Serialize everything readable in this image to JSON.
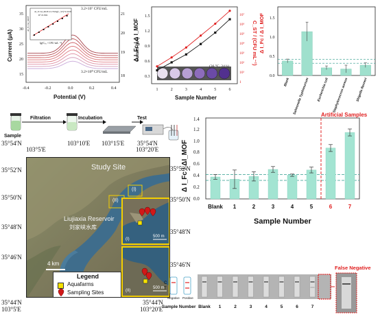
{
  "panel_a": {
    "ylabel": "Current (μA)",
    "xlabel": "Potential (V)",
    "ylabel_right": "Current (μA)",
    "top_label": "3.2×10⁷ CFU/mL",
    "bottom_label": "3.2×10⁰ CFU/mL",
    "inset_xlabel": "lg(Cₛₜ / CFU·mL⁻¹)",
    "inset_ylabel": "ΔI_Fc/ΔI_MOF",
    "inset_eq": "ΔI_Fc/ΔI_MOF=0.1792lg(C_ST)+0.3258",
    "inset_r2": "R²=0.994",
    "x_ticks": [
      "-0.4",
      "-0.2",
      "0.0",
      "0.2",
      "0.4"
    ],
    "y_ticks_left": [
      "15",
      "20",
      "25",
      "30",
      "35"
    ],
    "y_ticks_right": [
      "18",
      "19",
      "20",
      "21"
    ],
    "inset_x_ticks": [
      "0",
      "2",
      "4",
      "6",
      "8"
    ],
    "inset_y_ticks": [
      "0.4",
      "1.0",
      "1.6"
    ]
  },
  "panel_b": {
    "ylabel": "Δ I_Fc / Δ I_MOF",
    "ylabel_right": "C_ST / (CFU mL⁻¹)",
    "xlabel": "Sample Number",
    "condition": "(36 °C, 24 h)",
    "x_ticks": [
      "1",
      "2",
      "3",
      "4",
      "5",
      "6"
    ],
    "y_ticks_left": [
      "0.3",
      "0.6",
      "0.9",
      "1.2",
      "1.5"
    ],
    "y_ticks_right": [
      "1",
      "10¹",
      "10²",
      "10³",
      "10⁴",
      "10⁵",
      "10⁶",
      "10⁷"
    ],
    "colors": {
      "ratio": "#111111",
      "conc": "#e02020"
    }
  },
  "panel_c": {
    "ylabel": "Δ I_Fc / Δ I_MOF",
    "y_ticks": [
      "0.0",
      "0.5",
      "1.0",
      "1.5"
    ],
    "categories": [
      "Blank",
      "Salmonella Typhimurium",
      "Escherichia coli",
      "Staphylococcus aureus",
      "Shigella flexneri"
    ]
  },
  "workflow": {
    "steps": [
      "Sample",
      "Filtration",
      "Incubation",
      "Test"
    ]
  },
  "map": {
    "lat_labels": [
      "35°54'N",
      "35°52'N",
      "35°50'N",
      "35°48'N",
      "35°46'N",
      "35°44'N"
    ],
    "lon_top": [
      "103°5'E",
      "103°10'E",
      "103°15'E",
      "103°20'E"
    ],
    "corner_tl": "35°54'N",
    "corner_tr": "35°54'N",
    "corner_bl_lat": "35°44'N",
    "corner_bl_lon": "103°5'E",
    "corner_br_lat": "35°44'N",
    "corner_br_lon": "103°20'E",
    "study_site": "Study Site",
    "reservoir_en": "Liujiaxia Reservoir",
    "reservoir_cn": "刘家峡水库",
    "scale_main": "4 km",
    "inset_scale": "500 m",
    "inset1_label": "(I)",
    "inset2_label": "(II)",
    "legend_title": "Legend",
    "legend_items": [
      "Aquafarms",
      "Sampling Sites"
    ]
  },
  "panel_d": {
    "ylabel": "Δ I_Fc / ΔI_MOF",
    "xlabel": "Sample Number",
    "annotation": "Artificial Samples",
    "y_ticks": [
      "0.0",
      "0.2",
      "0.4",
      "0.6",
      "0.8",
      "1.0",
      "1.2",
      "1.4"
    ]
  },
  "strips": {
    "labels": [
      "Blank",
      "1",
      "2",
      "3",
      "4",
      "5",
      "6",
      "7"
    ],
    "row_label": "Sample Number",
    "negative": "Negative",
    "positive": "Positive",
    "ct": [
      "C",
      "T"
    ],
    "false_negative": "False Negative"
  },
  "chart_data": [
    {
      "type": "line",
      "x": [
        1,
        2,
        3,
        4,
        5,
        6
      ],
      "series": [
        {
          "values": [
            0.42,
            0.58,
            0.74,
            0.95,
            1.18,
            1.45
          ]
        },
        {
          "values": [
            0.5,
            0.68,
            0.88,
            1.12,
            1.36,
            1.62
          ]
        }
      ],
      "xlabel": "Sample Number",
      "ylabel": "Δ I_Fc / Δ I_MOF",
      "ylim": [
        0.15,
        1.7
      ]
    },
    {
      "type": "bar",
      "categories": [
        "Blank",
        "Salmonella Typhimurium",
        "Escherichia coli",
        "Staphylococcus aureus",
        "Shigella flexneri"
      ],
      "values": [
        0.38,
        1.15,
        0.2,
        0.17,
        0.27
      ],
      "errors": [
        0.05,
        0.25,
        0.05,
        0.1,
        0.06
      ],
      "ylabel": "Δ I_Fc / Δ I_MOF",
      "ylim": [
        0,
        1.8
      ]
    },
    {
      "type": "bar",
      "categories": [
        "Blank",
        "1",
        "2",
        "3",
        "4",
        "5",
        "6",
        "7"
      ],
      "values": [
        0.38,
        0.34,
        0.39,
        0.51,
        0.41,
        0.5,
        0.88,
        1.15
      ],
      "errors": [
        0.04,
        0.16,
        0.08,
        0.05,
        0.02,
        0.05,
        0.06,
        0.06
      ],
      "xlabel": "Sample Number",
      "ylabel": "Δ I_Fc / ΔI_MOF",
      "ylim": [
        0,
        1.4
      ]
    }
  ]
}
